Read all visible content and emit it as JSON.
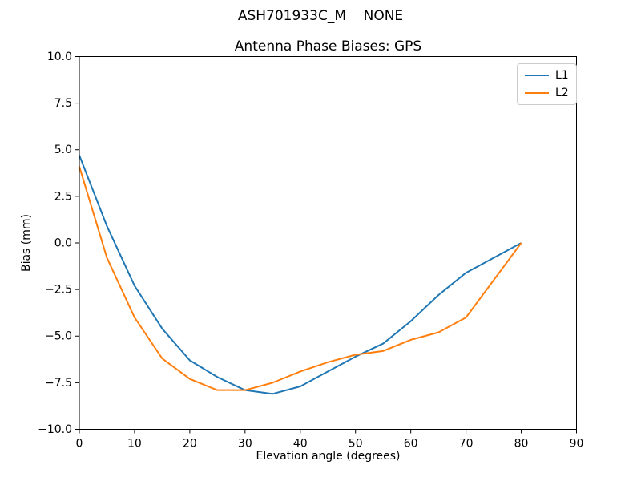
{
  "figure": {
    "suptitle": "ASH701933C_M    NONE",
    "title": "Antenna Phase Biases: GPS"
  },
  "chart_data": {
    "type": "line",
    "title": "Antenna Phase Biases: GPS",
    "xlabel": "Elevation angle (degrees)",
    "ylabel": "Bias (mm)",
    "xlim": [
      0,
      90
    ],
    "ylim": [
      -10,
      10
    ],
    "xticks": [
      0,
      10,
      20,
      30,
      40,
      50,
      60,
      70,
      80,
      90
    ],
    "yticks": [
      -10.0,
      -7.5,
      -5.0,
      -2.5,
      0.0,
      2.5,
      5.0,
      7.5,
      10.0
    ],
    "grid": false,
    "legend_position": "upper right",
    "x": [
      0,
      5,
      10,
      15,
      20,
      25,
      30,
      35,
      40,
      45,
      50,
      55,
      60,
      65,
      70,
      75,
      80
    ],
    "series": [
      {
        "name": "L1",
        "color": "#1f77b4",
        "values": [
          4.7,
          0.9,
          -2.3,
          -4.6,
          -6.3,
          -7.2,
          -7.9,
          -8.1,
          -7.7,
          -6.9,
          -6.1,
          -5.4,
          -4.2,
          -2.8,
          -1.6,
          -0.8,
          0.0
        ]
      },
      {
        "name": "L2",
        "color": "#ff7f0e",
        "values": [
          4.1,
          -0.8,
          -4.0,
          -6.2,
          -7.3,
          -7.9,
          -7.9,
          -7.5,
          -6.9,
          -6.4,
          -6.0,
          -5.8,
          -5.2,
          -4.8,
          -4.0,
          -2.0,
          0.0
        ]
      }
    ]
  },
  "colors": {
    "axes": "#000000",
    "tick_label": "#000000",
    "legend_border": "#cccccc",
    "background": "#ffffff",
    "series_l1": "#1f77b4",
    "series_l2": "#ff7f0e"
  }
}
